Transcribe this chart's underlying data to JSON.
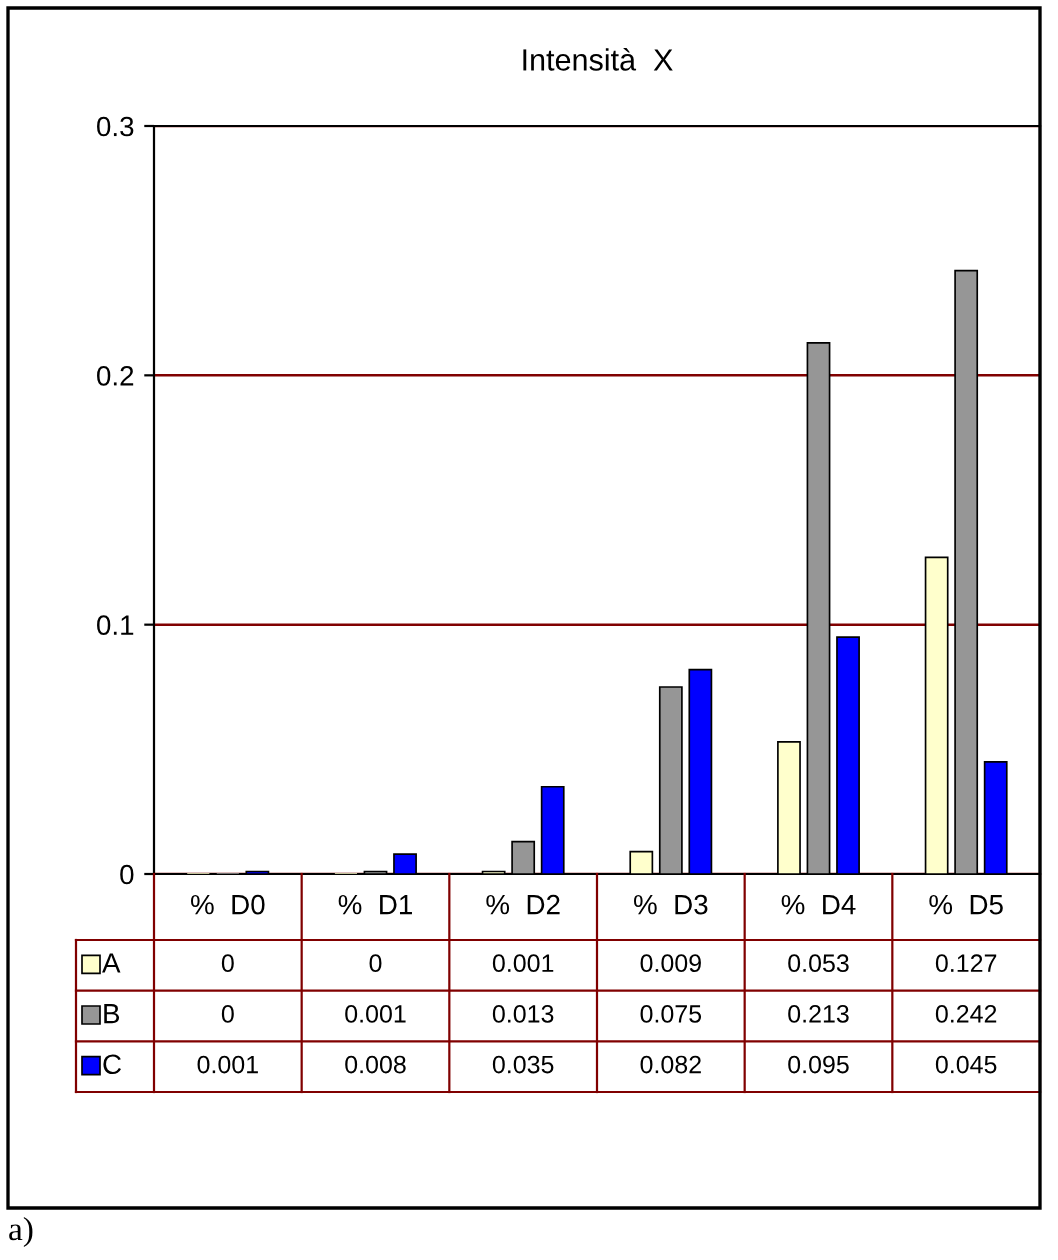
{
  "chart_data": {
    "type": "bar",
    "title": "Intensità  X",
    "categories": [
      "%  D0",
      "%  D1",
      "%  D2",
      "%  D3",
      "%  D4",
      "%  D5"
    ],
    "series": [
      {
        "name": "A",
        "color": "#ffffcc",
        "values": [
          0,
          0,
          0.001,
          0.009,
          0.053,
          0.127
        ]
      },
      {
        "name": "B",
        "color": "#969696",
        "values": [
          0,
          0.001,
          0.013,
          0.075,
          0.213,
          0.242
        ]
      },
      {
        "name": "C",
        "color": "#0000ff",
        "values": [
          0.001,
          0.008,
          0.035,
          0.082,
          0.095,
          0.045
        ]
      }
    ],
    "ylim": [
      0,
      0.3
    ],
    "yticks": [
      0,
      0.1,
      0.2,
      0.3
    ],
    "grid": "y",
    "data_labels": true,
    "legend": "bottom left",
    "annotations": [
      "a)"
    ]
  }
}
